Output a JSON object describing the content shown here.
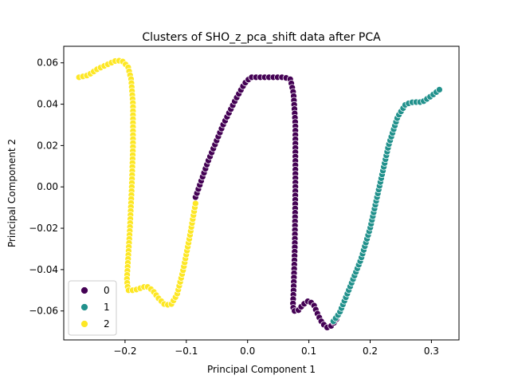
{
  "chart_data": {
    "type": "scatter",
    "title": "Clusters of SHO_z_pca_shift data after PCA",
    "xlabel": "Principal Component 1",
    "ylabel": "Principal Component 2",
    "xlim": [
      -0.3,
      0.345
    ],
    "ylim": [
      -0.074,
      0.068
    ],
    "xticks": [
      -0.2,
      -0.1,
      0.0,
      0.1,
      0.2,
      0.3
    ],
    "xtick_labels": [
      "−0.2",
      "−0.1",
      "0.0",
      "0.1",
      "0.2",
      "0.3"
    ],
    "yticks": [
      -0.06,
      -0.04,
      -0.02,
      0.0,
      0.02,
      0.04,
      0.06
    ],
    "ytick_labels": [
      "−0.06",
      "−0.04",
      "−0.02",
      "0.00",
      "0.02",
      "0.04",
      "0.06"
    ],
    "grid": false,
    "legend_position": "lower-left",
    "series": [
      {
        "name": "0",
        "color": "#440154",
        "path": [
          [
            -0.085,
            -0.005
          ],
          [
            -0.065,
            0.012
          ],
          [
            -0.04,
            0.03
          ],
          [
            -0.02,
            0.042
          ],
          [
            -0.005,
            0.05
          ],
          [
            0.005,
            0.053
          ],
          [
            0.03,
            0.053
          ],
          [
            0.06,
            0.053
          ],
          [
            0.07,
            0.052
          ],
          [
            0.075,
            0.045
          ],
          [
            0.078,
            0.03
          ],
          [
            0.078,
            0.0
          ],
          [
            0.077,
            -0.03
          ],
          [
            0.075,
            -0.05
          ],
          [
            0.074,
            -0.057
          ],
          [
            0.075,
            -0.06
          ],
          [
            0.082,
            -0.06
          ],
          [
            0.09,
            -0.057
          ],
          [
            0.1,
            -0.055
          ],
          [
            0.108,
            -0.057
          ],
          [
            0.115,
            -0.062
          ],
          [
            0.122,
            -0.066
          ],
          [
            0.13,
            -0.068
          ],
          [
            0.138,
            -0.067
          ],
          [
            0.145,
            -0.064
          ]
        ],
        "count": 110
      },
      {
        "name": "1",
        "color": "#21918c",
        "path": [
          [
            0.14,
            -0.065
          ],
          [
            0.15,
            -0.061
          ],
          [
            0.165,
            -0.05
          ],
          [
            0.185,
            -0.035
          ],
          [
            0.2,
            -0.02
          ],
          [
            0.215,
            0.0
          ],
          [
            0.23,
            0.02
          ],
          [
            0.245,
            0.034
          ],
          [
            0.258,
            0.04
          ],
          [
            0.27,
            0.041
          ],
          [
            0.285,
            0.041
          ],
          [
            0.3,
            0.044
          ],
          [
            0.313,
            0.047
          ]
        ],
        "count": 70
      },
      {
        "name": "2",
        "color": "#fde725",
        "path": [
          [
            -0.275,
            0.053
          ],
          [
            -0.26,
            0.054
          ],
          [
            -0.245,
            0.057
          ],
          [
            -0.23,
            0.059
          ],
          [
            -0.215,
            0.061
          ],
          [
            -0.205,
            0.061
          ],
          [
            -0.195,
            0.058
          ],
          [
            -0.19,
            0.052
          ],
          [
            -0.187,
            0.04
          ],
          [
            -0.187,
            0.02
          ],
          [
            -0.189,
            0.0
          ],
          [
            -0.192,
            -0.02
          ],
          [
            -0.195,
            -0.035
          ],
          [
            -0.197,
            -0.045
          ],
          [
            -0.195,
            -0.05
          ],
          [
            -0.185,
            -0.05
          ],
          [
            -0.175,
            -0.049
          ],
          [
            -0.165,
            -0.048
          ],
          [
            -0.155,
            -0.05
          ],
          [
            -0.145,
            -0.054
          ],
          [
            -0.135,
            -0.057
          ],
          [
            -0.125,
            -0.057
          ],
          [
            -0.115,
            -0.052
          ],
          [
            -0.105,
            -0.04
          ],
          [
            -0.095,
            -0.025
          ],
          [
            -0.085,
            -0.008
          ]
        ],
        "count": 110
      }
    ]
  }
}
